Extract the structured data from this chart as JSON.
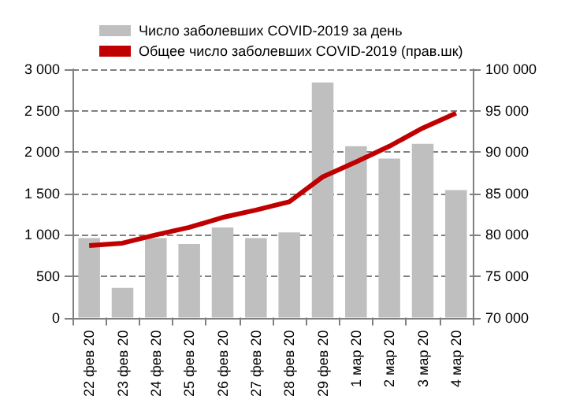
{
  "chart_data": {
    "type": "bar",
    "categories": [
      "22 фев 20",
      "23 фев 20",
      "24 фев 20",
      "25 фев 20",
      "26 фев 20",
      "27 фев 20",
      "28 фев 20",
      "29 фев 20",
      "1 мар 20",
      "2 мар 20",
      "3 мар 20",
      "4 мар 20"
    ],
    "series": [
      {
        "name": "Число заболевших COVID-2019 за день",
        "color": "#bfbfbf",
        "values": [
          960,
          360,
          960,
          890,
          1090,
          960,
          1030,
          2840,
          2070,
          1920,
          2100,
          1540
        ]
      },
      {
        "name": "Общее число заболевших COVID-2019 (прав.шк)",
        "type": "line",
        "axis": "y2",
        "color": "#c00000",
        "values": [
          78700,
          79000,
          80000,
          80900,
          82100,
          83000,
          84000,
          87000,
          88800,
          90700,
          92900,
          94700
        ]
      }
    ],
    "ylim": [
      0,
      3000
    ],
    "yticks": [
      {
        "value": 0,
        "label": "0"
      },
      {
        "value": 500,
        "label": "500"
      },
      {
        "value": 1000,
        "label": "1 000"
      },
      {
        "value": 1500,
        "label": "1 500"
      },
      {
        "value": 2000,
        "label": "2 000"
      },
      {
        "value": 2500,
        "label": "2 500"
      },
      {
        "value": 3000,
        "label": "3 000"
      }
    ],
    "y2lim": [
      70000,
      100000
    ],
    "y2ticks": [
      {
        "value": 70000,
        "label": "70 000"
      },
      {
        "value": 75000,
        "label": "75 000"
      },
      {
        "value": 80000,
        "label": "80 000"
      },
      {
        "value": 85000,
        "label": "85 000"
      },
      {
        "value": 90000,
        "label": "90 000"
      },
      {
        "value": 95000,
        "label": "95 000"
      },
      {
        "value": 100000,
        "label": "100 000"
      }
    ],
    "grid": "y",
    "legend": "top left",
    "marker": "none"
  }
}
